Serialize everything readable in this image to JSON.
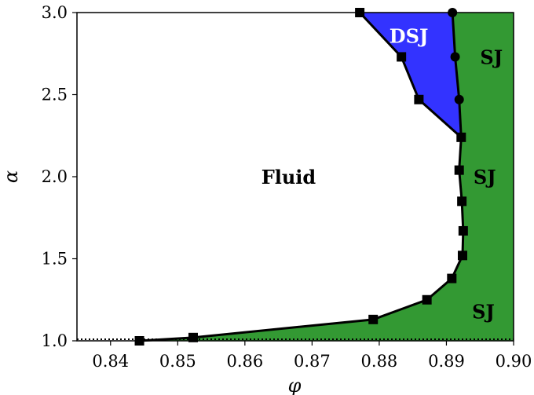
{
  "chart_data": {
    "type": "line",
    "xlabel": "φ",
    "ylabel": "α",
    "xlim": [
      0.835,
      0.9
    ],
    "ylim": [
      1.0,
      3.0
    ],
    "x_ticks": [
      0.84,
      0.85,
      0.86,
      0.87,
      0.88,
      0.89,
      0.9
    ],
    "x_tick_labels": [
      "0.84",
      "0.85",
      "0.86",
      "0.87",
      "0.88",
      "0.89",
      "0.90"
    ],
    "y_ticks": [
      1.0,
      1.5,
      2.0,
      2.5,
      3.0
    ],
    "y_tick_labels": [
      "1.0",
      "1.5",
      "2.0",
      "2.5",
      "3.0"
    ],
    "grid": false,
    "colors": {
      "fluid": "#ffffff",
      "sj": "#339933",
      "dsj": "#3333ff",
      "line": "#000000"
    },
    "series": [
      {
        "marker": "square",
        "x": [
          0.8443,
          0.8523,
          0.8791,
          0.8871,
          0.8908,
          0.8924,
          0.8925,
          0.8923,
          0.8919,
          0.8922
        ],
        "y": [
          1.0,
          1.02,
          1.13,
          1.25,
          1.38,
          1.52,
          1.67,
          1.85,
          2.04,
          2.24
        ]
      },
      {
        "marker": "square",
        "x": [
          0.8771,
          0.8833,
          0.8859
        ],
        "y": [
          3.0,
          2.73,
          2.47
        ]
      },
      {
        "marker": "circle",
        "x": [
          0.8909,
          0.8913,
          0.8919
        ],
        "y": [
          3.0,
          2.73,
          2.47
        ]
      }
    ],
    "baseline": {
      "style": "dotted",
      "y": 1.0
    },
    "regions": [
      {
        "label": "Fluid",
        "x": 0.8665,
        "y": 2.0
      },
      {
        "label": "DSJ",
        "x": 0.8844,
        "y": 2.86
      },
      {
        "label": "SJ",
        "x": 0.8967,
        "y": 2.73
      },
      {
        "label": "SJ",
        "x": 0.8957,
        "y": 2.0
      },
      {
        "label": "SJ",
        "x": 0.8955,
        "y": 1.18
      }
    ]
  }
}
